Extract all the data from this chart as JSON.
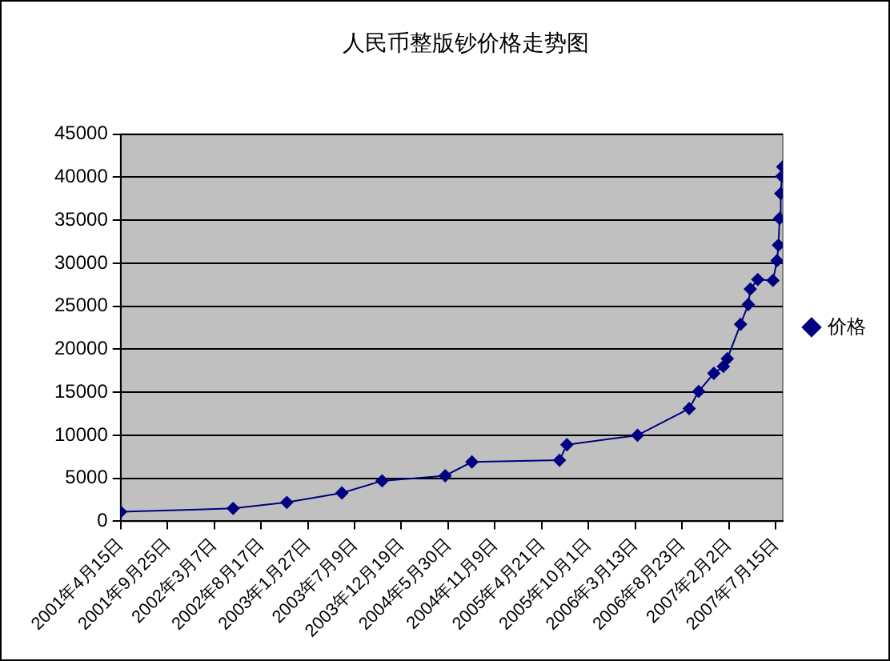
{
  "chart_data": {
    "type": "line",
    "title": "人民币整版钞价格走势图",
    "x": [
      "2001-04-15",
      "2002-05-12",
      "2002-11-15",
      "2003-05-26",
      "2003-10-13",
      "2004-05-20",
      "2004-08-21",
      "2005-06-22",
      "2005-07-18",
      "2006-03-21",
      "2006-09-17",
      "2006-10-20",
      "2006-12-12",
      "2007-01-14",
      "2007-01-28",
      "2007-03-15",
      "2007-04-11",
      "2007-04-18",
      "2007-05-14",
      "2007-07-06",
      "2007-07-20",
      "2007-07-25",
      "2007-07-29",
      "2007-08-02",
      "2007-08-06",
      "2007-08-09"
    ],
    "series": [
      {
        "name": "价格",
        "color": "#000080",
        "values": [
          1100,
          1500,
          2200,
          3300,
          4700,
          5300,
          6900,
          7100,
          8900,
          10000,
          13100,
          15100,
          17200,
          18000,
          18900,
          22900,
          25200,
          27000,
          28100,
          28000,
          30300,
          32100,
          35200,
          38100,
          40100,
          41200
        ]
      }
    ],
    "xlim": [
      "2001-04-15",
      "2007-08-09"
    ],
    "xticks": [
      {
        "value": "2001-04-15",
        "label": "2001年4月15日"
      },
      {
        "value": "2001-09-25",
        "label": "2001年9月25日"
      },
      {
        "value": "2002-03-07",
        "label": "2002年3月7日"
      },
      {
        "value": "2002-08-17",
        "label": "2002年8月17日"
      },
      {
        "value": "2003-01-27",
        "label": "2003年1月27日"
      },
      {
        "value": "2003-07-09",
        "label": "2003年7月9日"
      },
      {
        "value": "2003-12-19",
        "label": "2003年12月19日"
      },
      {
        "value": "2004-05-30",
        "label": "2004年5月30日"
      },
      {
        "value": "2004-11-09",
        "label": "2004年11月9日"
      },
      {
        "value": "2005-04-21",
        "label": "2005年4月21日"
      },
      {
        "value": "2005-10-01",
        "label": "2005年10月1日"
      },
      {
        "value": "2006-03-13",
        "label": "2006年3月13日"
      },
      {
        "value": "2006-08-23",
        "label": "2006年8月23日"
      },
      {
        "value": "2007-02-02",
        "label": "2007年2月2日"
      },
      {
        "value": "2007-07-15",
        "label": "2007年7月15日"
      }
    ],
    "ylim": [
      0,
      45000
    ],
    "yticks": [
      0,
      5000,
      10000,
      15000,
      20000,
      25000,
      30000,
      35000,
      40000,
      45000
    ],
    "grid": "y",
    "legend": "right",
    "marker": "diamond",
    "line_style": "solid"
  }
}
